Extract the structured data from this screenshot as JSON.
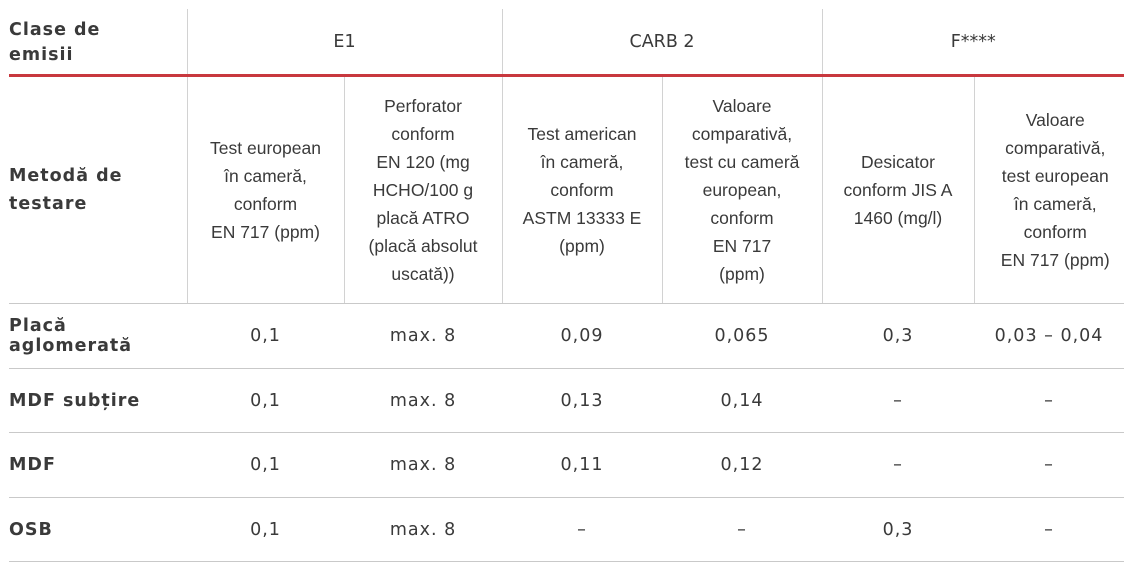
{
  "table": {
    "header": {
      "label": "Clase de\nemisii",
      "groups": [
        "E1",
        "CARB 2",
        "F****"
      ]
    },
    "method": {
      "label": "Metodă de\ntestare",
      "columns": [
        "Test european\nîn cameră,\nconform\nEN 717 (ppm)",
        "Perforator\nconform\nEN 120 (mg\nHCHO/100 g\nplacă ATRO\n(placă absolut\nuscată))",
        "Test american\nîn cameră,\nconform\nASTM 13333 E\n(ppm)",
        "Valoare\ncomparativă,\ntest cu cameră\neuropean,\nconform\nEN 717\n(ppm)",
        "Desicator\nconform JIS A\n1460 (mg/l)",
        "Valoare\ncomparativă,\ntest european\nîn cameră,\nconform\nEN 717 (ppm)"
      ]
    },
    "rows": [
      {
        "label": "Placă\naglomerată",
        "values": [
          "0,1",
          "max. 8",
          "0,09",
          "0,065",
          "0,3",
          "0,03 – 0,04"
        ]
      },
      {
        "label": "MDF subțire",
        "values": [
          "0,1",
          "max. 8",
          "0,13",
          "0,14",
          "–",
          "–"
        ]
      },
      {
        "label": "MDF",
        "values": [
          "0,1",
          "max. 8",
          "0,11",
          "0,12",
          "–",
          "–"
        ]
      },
      {
        "label": "OSB",
        "values": [
          "0,1",
          "max. 8",
          "–",
          "–",
          "0,3",
          "–"
        ]
      }
    ]
  },
  "colors": {
    "accent_rule": "#c8383e",
    "grid": "#d2d2d2",
    "text": "#3a3a3a"
  }
}
